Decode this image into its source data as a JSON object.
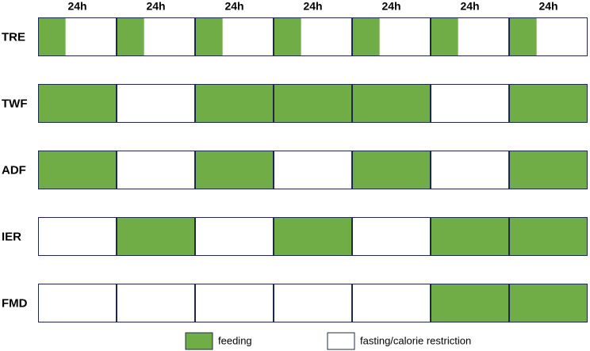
{
  "header": {
    "columns": [
      "24h",
      "24h",
      "24h",
      "24h",
      "24h",
      "24h",
      "24h"
    ]
  },
  "feeding_color": "#70ad47",
  "rows": [
    {
      "label": "TRE",
      "feeding": [
        0.35,
        0.35,
        0.35,
        0.35,
        0.35,
        0.35,
        0.35
      ]
    },
    {
      "label": "TWF",
      "feeding": [
        1,
        0,
        1,
        1,
        1,
        0,
        1
      ]
    },
    {
      "label": "ADF",
      "feeding": [
        1,
        0,
        1,
        0,
        1,
        0,
        1
      ]
    },
    {
      "label": "IER",
      "feeding": [
        0,
        1,
        0,
        1,
        0,
        1,
        1
      ]
    },
    {
      "label": "FMD",
      "feeding": [
        0,
        0,
        0,
        0,
        0,
        1,
        1
      ]
    }
  ],
  "legend": {
    "feeding": "feeding",
    "fasting": "fasting/calorie restriction"
  }
}
